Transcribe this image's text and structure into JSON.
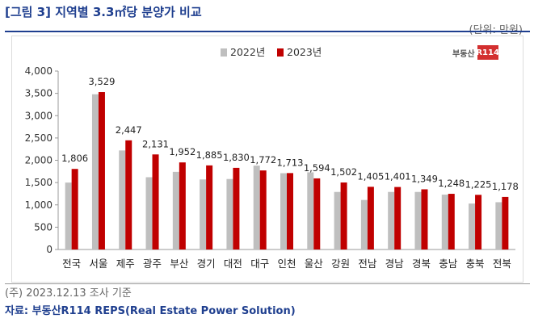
{
  "header": {
    "title": "[그림 3] 지역별 3.3㎡당 분양가 비교",
    "unit": "(단위: 만원)"
  },
  "footer": {
    "note": "(주) 2023.12.13 조사 기준",
    "source": "자료: 부동산R114 REPS(Real Estate Power Solution)"
  },
  "logo": {
    "text": "부동산",
    "badge": "R114"
  },
  "colors": {
    "series2022": "#bfbfbf",
    "series2023": "#c00000",
    "title": "#1f3f8f"
  },
  "chart_data": {
    "type": "bar",
    "categories": [
      "전국",
      "서울",
      "제주",
      "광주",
      "부산",
      "경기",
      "대전",
      "대구",
      "인천",
      "울산",
      "강원",
      "전남",
      "경남",
      "경북",
      "충남",
      "충북",
      "전북"
    ],
    "series": [
      {
        "name": "2022년",
        "values": [
          1500,
          3480,
          2220,
          1620,
          1740,
          1570,
          1580,
          1880,
          1710,
          1730,
          1290,
          1110,
          1290,
          1290,
          1230,
          1030,
          1060
        ]
      },
      {
        "name": "2023년",
        "values": [
          1806,
          3529,
          2447,
          2131,
          1952,
          1885,
          1830,
          1772,
          1713,
          1594,
          1502,
          1405,
          1401,
          1349,
          1248,
          1225,
          1178
        ]
      }
    ],
    "data_labels": [
      "1,806",
      "3,529",
      "2,447",
      "2,131",
      "1,952",
      "1,885",
      "1,830",
      "1,772",
      "1,713",
      "1,594",
      "1,502",
      "1,405",
      "1,401",
      "1,349",
      "1,248",
      "1,225",
      "1,178"
    ],
    "yticks": [
      "0",
      "500",
      "1,000",
      "1,500",
      "2,000",
      "2,500",
      "3,000",
      "3,500",
      "4,000"
    ],
    "ylim": [
      0,
      4000
    ],
    "legend_position": "top-center",
    "grid": false
  }
}
